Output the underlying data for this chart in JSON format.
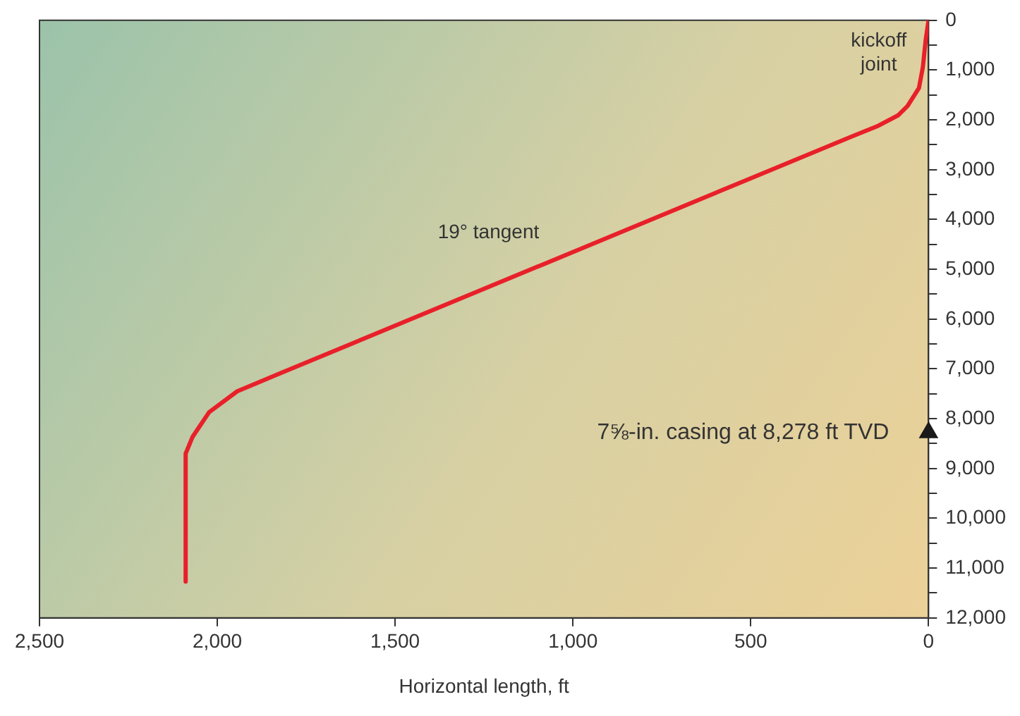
{
  "chart_data": {
    "type": "line",
    "xlabel": "Horizontal length, ft",
    "series": [
      {
        "type": "line",
        "color": "#e8202a",
        "x": [
          0,
          8,
          16,
          27,
          59,
          86,
          145,
          215,
          1827,
          1944,
          2023,
          2070,
          2089,
          2089
        ],
        "values": [
          0,
          390,
          940,
          1360,
          1720,
          1910,
          2130,
          2330,
          7100,
          7450,
          7870,
          8370,
          8700,
          11270
        ]
      },
      {
        "type": "scatter",
        "color": "#1a1a1a",
        "marker": "triangle",
        "x": [
          0
        ],
        "values": [
          8278
        ]
      }
    ],
    "xlim": [
      2500,
      0
    ],
    "xticks": [
      {
        "value": 2500,
        "label": "2,500"
      },
      {
        "value": 2000,
        "label": "2,000"
      },
      {
        "value": 1500,
        "label": "1,500"
      },
      {
        "value": 1000,
        "label": "1,000"
      },
      500,
      0
    ],
    "ylim": [
      12000,
      0
    ],
    "yticks": [
      0,
      {
        "value": 500,
        "label": null
      },
      {
        "value": 1000,
        "label": "1,000"
      },
      {
        "value": 1500,
        "label": null
      },
      {
        "value": 2000,
        "label": "2,000"
      },
      {
        "value": 2500,
        "label": null
      },
      {
        "value": 3000,
        "label": "3,000"
      },
      {
        "value": 3500,
        "label": null
      },
      {
        "value": 4000,
        "label": "4,000"
      },
      {
        "value": 4500,
        "label": null
      },
      {
        "value": 5000,
        "label": "5,000"
      },
      {
        "value": 5500,
        "label": null
      },
      {
        "value": 6000,
        "label": "6,000"
      },
      {
        "value": 6500,
        "label": null
      },
      {
        "value": 7000,
        "label": "7,000"
      },
      {
        "value": 7500,
        "label": null
      },
      {
        "value": 8000,
        "label": "8,000"
      },
      {
        "value": 8500,
        "label": null
      },
      {
        "value": 9000,
        "label": "9,000"
      },
      {
        "value": 9500,
        "label": null
      },
      {
        "value": 10000,
        "label": "10,000"
      },
      {
        "value": 10500,
        "label": null
      },
      {
        "value": 11000,
        "label": "11,000"
      },
      {
        "value": 11500,
        "label": null
      },
      {
        "value": 12000,
        "label": "12,000"
      }
    ],
    "annotations": [
      "kickoff\njoint",
      "19° tangent",
      {
        "text": "7⅝-in. casing at 8,278 ft TVD",
        "x": 0,
        "y": 8278
      }
    ],
    "grid": false,
    "legend": false,
    "line_style": "solid"
  }
}
